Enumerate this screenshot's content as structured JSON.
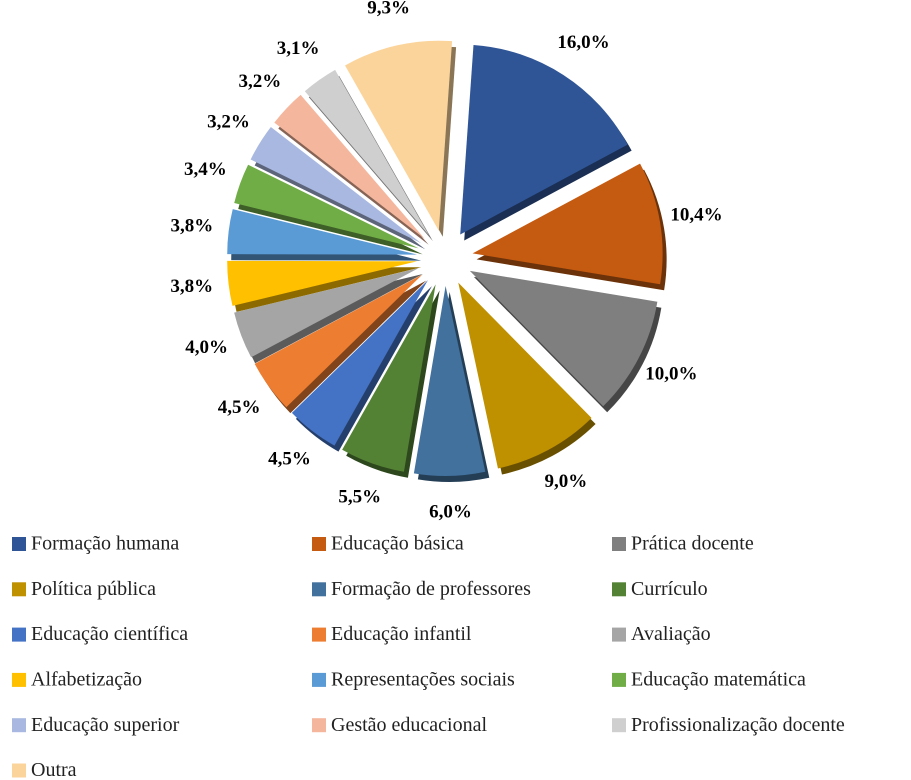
{
  "chart_data": {
    "type": "pie",
    "categories": [
      "Formação humana",
      "Educação básica",
      "Prática docente",
      "Política pública",
      "Formação de professores",
      "Currículo",
      "Educação científica",
      "Educação infantil",
      "Avaliação",
      "Alfabetização",
      "Representações sociais",
      "Educação matemática",
      "Educação superior",
      "Gestão educacional",
      "Profissionalização docente",
      "Outra"
    ],
    "values": [
      16.0,
      10.4,
      10.0,
      9.0,
      6.0,
      5.5,
      4.5,
      4.5,
      4.0,
      3.8,
      3.8,
      3.4,
      3.2,
      3.2,
      3.1,
      9.3
    ],
    "value_labels": [
      "16,0%",
      "10,4%",
      "10,0%",
      "9,0%",
      "6,0%",
      "5,5%",
      "4,5%",
      "4,5%",
      "4,0%",
      "3,8%",
      "3,8%",
      "3,4%",
      "3,2%",
      "3,2%",
      "3,1%",
      "9,3%"
    ],
    "colors": [
      "#2f5597",
      "#c55a11",
      "#7f7f7f",
      "#bf9000",
      "#41719c",
      "#548235",
      "#4472c4",
      "#ed7d31",
      "#a5a5a5",
      "#ffc000",
      "#5b9bd5",
      "#70ad47",
      "#a9b8e0",
      "#f4b69c",
      "#cfcfcf",
      "#fbd49c"
    ],
    "legend": "bottom"
  }
}
